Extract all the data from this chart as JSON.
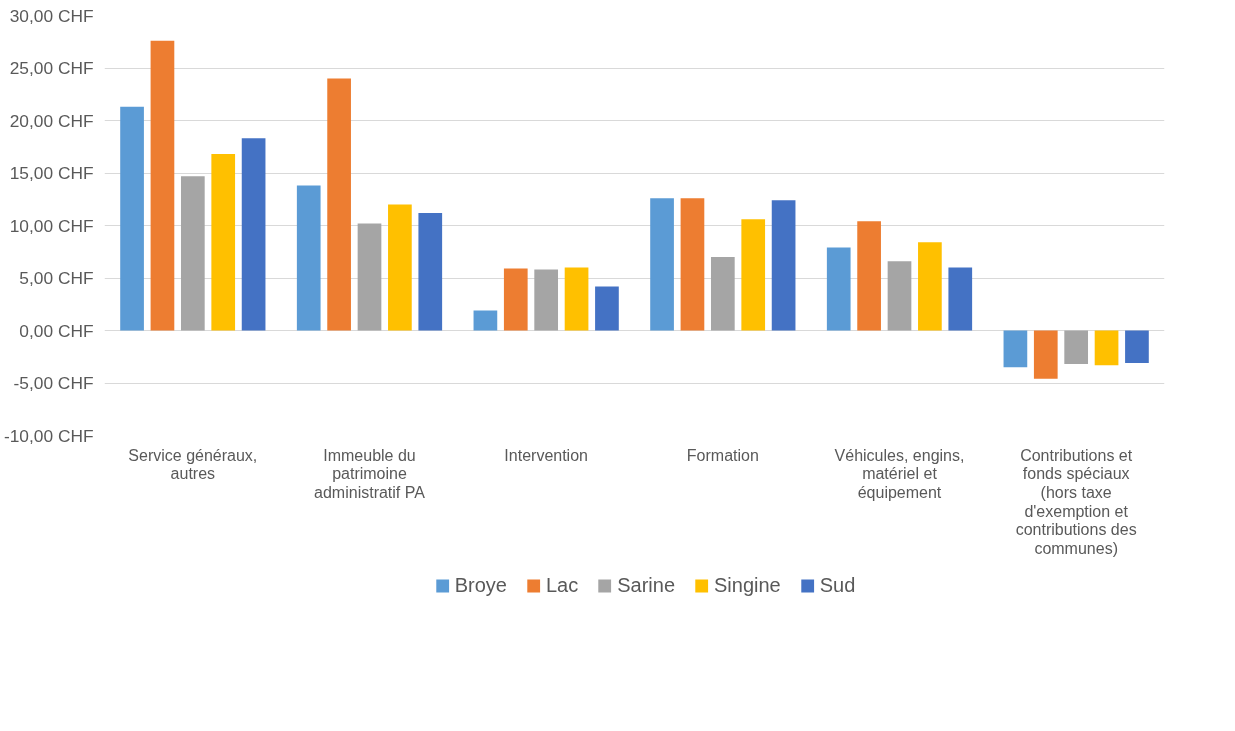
{
  "chart_data": {
    "type": "bar",
    "categories": [
      "Service généraux, autres",
      "Immeuble du patrimoine administratif PA",
      "Intervention",
      "Formation",
      "Véhicules, engins, matériel et équipement",
      "Contributions et fonds spéciaux (hors taxe d'exemption et contributions des communes)"
    ],
    "series": [
      {
        "name": "Broye",
        "color": "#5b9bd5",
        "values": [
          21.3,
          13.8,
          1.9,
          12.6,
          7.9,
          -3.5
        ]
      },
      {
        "name": "Lac",
        "color": "#ed7d31",
        "values": [
          27.6,
          24.0,
          5.9,
          12.6,
          10.4,
          -4.6
        ]
      },
      {
        "name": "Sarine",
        "color": "#a5a5a5",
        "values": [
          14.7,
          10.2,
          5.8,
          7.0,
          6.6,
          -3.2
        ]
      },
      {
        "name": "Singine",
        "color": "#ffc000",
        "values": [
          16.8,
          12.0,
          6.0,
          10.6,
          8.4,
          -3.3
        ]
      },
      {
        "name": "Sud",
        "color": "#4472c4",
        "values": [
          18.3,
          11.2,
          4.2,
          12.4,
          6.0,
          -3.1
        ]
      }
    ],
    "ylim": [
      -10,
      30
    ],
    "yticks": [
      {
        "value": -10,
        "label": "-10,00 CHF"
      },
      {
        "value": -5,
        "label": "-5,00 CHF"
      },
      {
        "value": 0,
        "label": "0,00 CHF"
      },
      {
        "value": 5,
        "label": "5,00 CHF"
      },
      {
        "value": 10,
        "label": "10,00 CHF"
      },
      {
        "value": 15,
        "label": "15,00 CHF"
      },
      {
        "value": 20,
        "label": "20,00 CHF"
      },
      {
        "value": 25,
        "label": "25,00 CHF"
      },
      {
        "value": 30,
        "label": "30,00 CHF"
      }
    ],
    "grid": "y",
    "legend": "bottom"
  }
}
